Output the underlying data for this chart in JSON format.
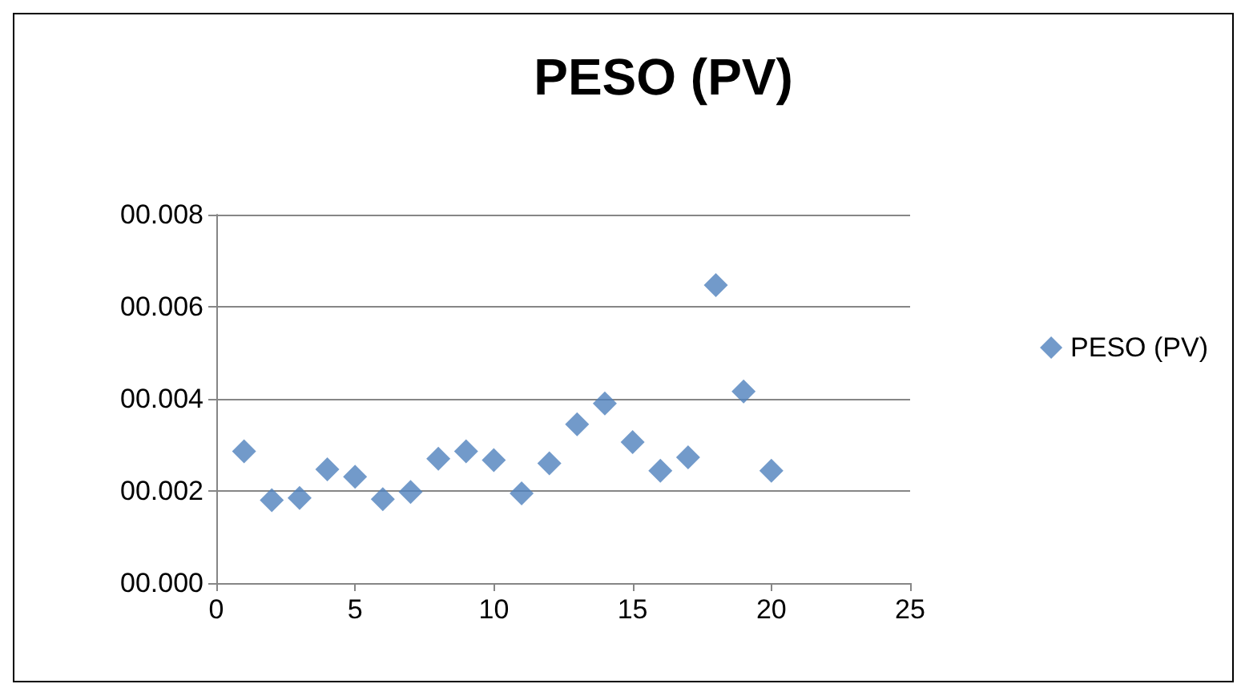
{
  "chart_data": {
    "type": "scatter",
    "title": "PESO (PV)",
    "x": [
      1,
      2,
      3,
      4,
      5,
      6,
      7,
      8,
      9,
      10,
      11,
      12,
      13,
      14,
      15,
      16,
      17,
      18,
      19,
      20
    ],
    "series": [
      {
        "name": "PESO (PV)",
        "color": "#4f81bd",
        "values": [
          0.00286,
          0.0018,
          0.00185,
          0.00247,
          0.00231,
          0.00182,
          0.00198,
          0.0027,
          0.00286,
          0.00267,
          0.00195,
          0.0026,
          0.00345,
          0.0039,
          0.00306,
          0.00244,
          0.00273,
          0.00647,
          0.00416,
          0.00244
        ]
      }
    ],
    "xlim": [
      0,
      25
    ],
    "xticks": [
      0,
      5,
      10,
      15,
      20,
      25
    ],
    "ylim": [
      0,
      0.008
    ],
    "yticks": [
      {
        "value": 0,
        "label": "00.000"
      },
      {
        "value": 0.002,
        "label": "00.002"
      },
      {
        "value": 0.004,
        "label": "00.004"
      },
      {
        "value": 0.006,
        "label": "00.006"
      },
      {
        "value": 0.008,
        "label": "00.008"
      }
    ],
    "grid": "y",
    "legend": "right",
    "marker": "diamond"
  }
}
